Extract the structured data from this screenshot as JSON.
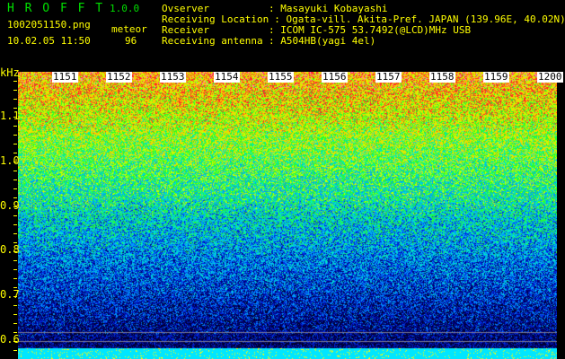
{
  "header": {
    "app_title": "H R O F F T",
    "version": "1.0.0",
    "filename": "1002051150.png",
    "datetime": "10.02.05 11:50",
    "meteor_label": "meteor",
    "meteor_count": "96"
  },
  "info": [
    {
      "label": "Ovserver",
      "value": ": Masayuki Kobayashi"
    },
    {
      "label": "Receiving Location",
      "value": ": Ogata-vill. Akita-Pref. JAPAN (139.96E, 40.02N)"
    },
    {
      "label": "Receiver",
      "value": ": ICOM IC-575 53.7492(@LCD)MHz USB"
    },
    {
      "label": "Receiving antenna",
      "value": ": A504HB(yagi 4el)"
    }
  ],
  "spectrogram": {
    "y_unit": "kHz",
    "y_ticks": [
      "1.1",
      "1.0",
      "0.9",
      "0.8",
      "0.7",
      "0.6"
    ],
    "time_labels": [
      "1151",
      "1152",
      "1153",
      "1154",
      "1155",
      "1156",
      "1157",
      "1158",
      "1159",
      "1200"
    ]
  }
}
